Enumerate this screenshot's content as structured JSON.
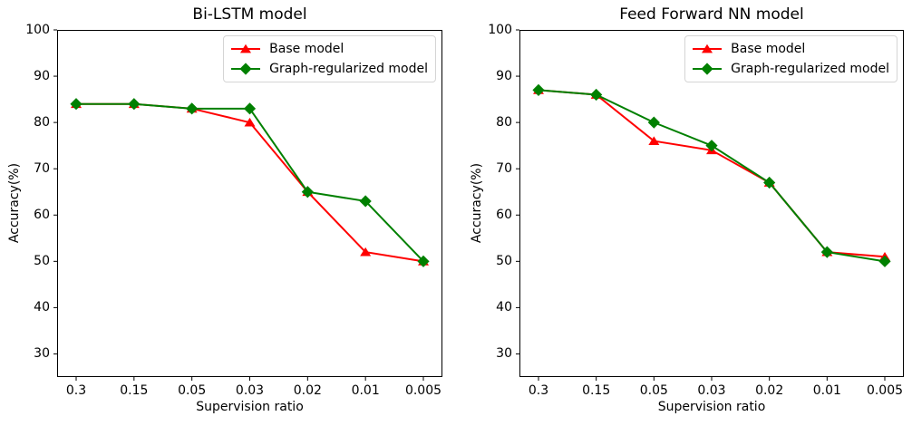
{
  "figure": {
    "background_color": "#ffffff",
    "axis_color": "#000000"
  },
  "chart_data": [
    {
      "type": "line",
      "title": "Bi-LSTM model",
      "xlabel": "Supervision ratio",
      "ylabel": "Accuracy(%)",
      "categories": [
        "0.3",
        "0.15",
        "0.05",
        "0.03",
        "0.02",
        "0.01",
        "0.005"
      ],
      "yticks": [
        30,
        40,
        50,
        60,
        70,
        80,
        90,
        100
      ],
      "ylim": [
        25,
        100
      ],
      "grid": false,
      "legend": {
        "position": "upper right",
        "entries": [
          "Base model",
          "Graph-regularized model"
        ]
      },
      "series": [
        {
          "name": "Base model",
          "color": "#ff0000",
          "marker": "triangle-up",
          "values": [
            84,
            84,
            83,
            80,
            65,
            52,
            50
          ]
        },
        {
          "name": "Graph-regularized model",
          "color": "#008000",
          "marker": "diamond",
          "values": [
            84,
            84,
            83,
            83,
            65,
            63,
            50
          ]
        }
      ]
    },
    {
      "type": "line",
      "title": "Feed Forward NN model",
      "xlabel": "Supervision ratio",
      "ylabel": "Accuracy(%)",
      "categories": [
        "0.3",
        "0.15",
        "0.05",
        "0.03",
        "0.02",
        "0.01",
        "0.005"
      ],
      "yticks": [
        30,
        40,
        50,
        60,
        70,
        80,
        90,
        100
      ],
      "ylim": [
        25,
        100
      ],
      "grid": false,
      "legend": {
        "position": "upper right",
        "entries": [
          "Base model",
          "Graph-regularized model"
        ]
      },
      "series": [
        {
          "name": "Base model",
          "color": "#ff0000",
          "marker": "triangle-up",
          "values": [
            87,
            86,
            76,
            74,
            67,
            52,
            51
          ]
        },
        {
          "name": "Graph-regularized model",
          "color": "#008000",
          "marker": "diamond",
          "values": [
            87,
            86,
            80,
            75,
            67,
            52,
            50
          ]
        }
      ]
    }
  ]
}
